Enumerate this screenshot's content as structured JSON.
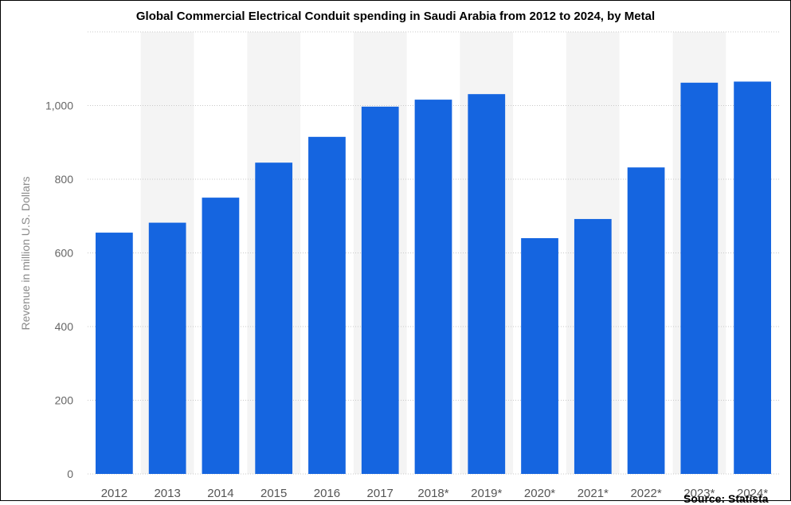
{
  "chart_data": {
    "type": "bar",
    "title": "Global Commercial Electrical Conduit spending in Saudi Arabia from 2012 to 2024, by Metal",
    "xlabel": "",
    "ylabel": "Revenue in million U.S. Dollars",
    "categories": [
      "2012",
      "2013",
      "2014",
      "2015",
      "2016",
      "2017",
      "2018*",
      "2019*",
      "2020*",
      "2021*",
      "2022*",
      "2023*",
      "2024*"
    ],
    "values": [
      655,
      682,
      750,
      845,
      915,
      997,
      1016,
      1031,
      640,
      692,
      832,
      1062,
      1065
    ],
    "ylim": [
      0,
      1200
    ],
    "yticks": [
      0,
      200,
      400,
      600,
      800,
      1000
    ],
    "ytick_labels": [
      "0",
      "200",
      "400",
      "600",
      "800",
      "1,000"
    ],
    "bar_color": "#1565e0",
    "grid": true,
    "source": "Source: Statista"
  }
}
